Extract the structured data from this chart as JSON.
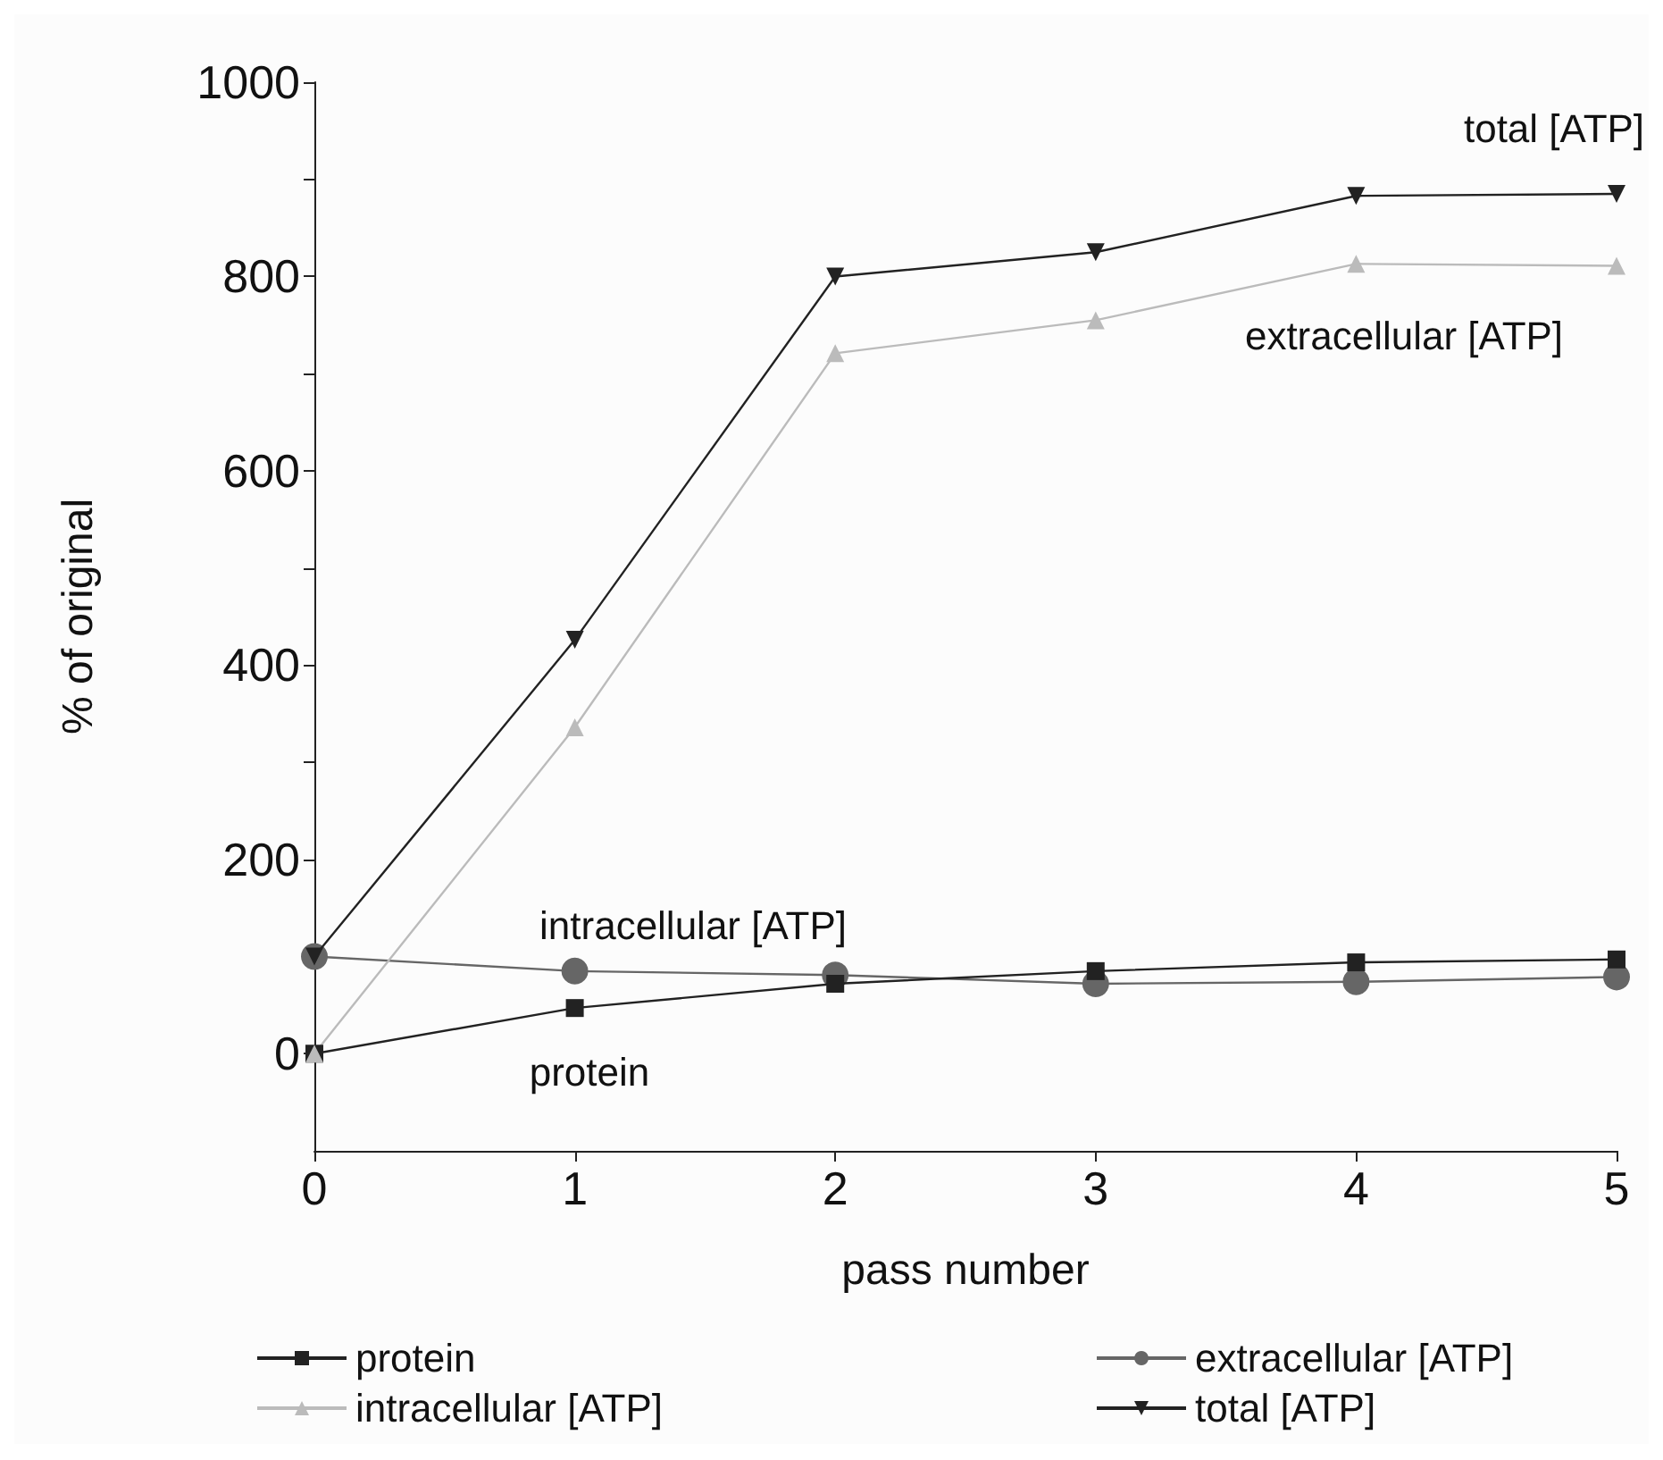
{
  "chart_data": {
    "type": "line",
    "xlabel": "pass number",
    "ylabel": "% of original",
    "x": [
      0,
      1,
      2,
      3,
      4,
      5
    ],
    "series": [
      {
        "name": "protein",
        "color": "#222222",
        "marker": "square",
        "values": [
          0,
          47,
          72,
          85,
          94,
          97
        ]
      },
      {
        "name": "extracellular [ATP]",
        "color": "#666666",
        "marker": "circle",
        "values": [
          100,
          85,
          81,
          72,
          74,
          79
        ]
      },
      {
        "name": "intracellular [ATP]",
        "color": "#bbbbbb",
        "marker": "triangle",
        "values": [
          0,
          336,
          721,
          755,
          813,
          811
        ]
      },
      {
        "name": "total [ATP]",
        "color": "#222222",
        "marker": "triangle-down",
        "values": [
          100,
          426,
          800,
          825,
          883,
          885
        ]
      }
    ],
    "xlim": [
      0,
      5
    ],
    "xticks": [
      0,
      1,
      2,
      3,
      4,
      5
    ],
    "ylim": [
      -100,
      1000
    ],
    "yticks": [
      0,
      {
        "value": 100,
        "label": null
      },
      200,
      {
        "value": 300,
        "label": null
      },
      400,
      {
        "value": 500,
        "label": null
      },
      600,
      {
        "value": 700,
        "label": null
      },
      800,
      {
        "value": 900,
        "label": null
      },
      1000
    ],
    "grid": false,
    "legend": "bottom",
    "line_style": "solid",
    "annotations": [
      "total [ATP]",
      "extracellular [ATP]",
      "intracellular [ATP]",
      "protein"
    ]
  }
}
